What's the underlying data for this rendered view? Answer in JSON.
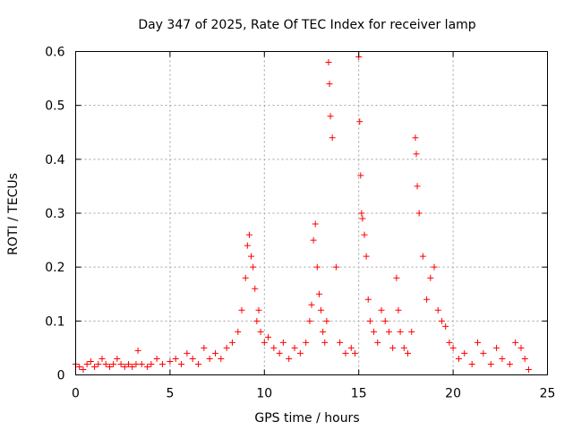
{
  "chart_data": {
    "type": "scatter",
    "title": "Day 347 of 2025, Rate Of TEC Index for receiver lamp",
    "xlabel": "GPS time / hours",
    "ylabel": "ROTI / TECUs",
    "xlim": [
      0,
      25
    ],
    "ylim": [
      0,
      0.6
    ],
    "xticks": [
      "0",
      "5",
      "10",
      "15",
      "20",
      "25"
    ],
    "yticks": [
      "0",
      "0.1",
      "0.2",
      "0.3",
      "0.4",
      "0.5",
      "0.6"
    ],
    "grid": true,
    "marker": "+",
    "color": "#ff0000",
    "series": [
      {
        "x": [
          0.0,
          0.2,
          0.4,
          0.6,
          0.8,
          1.0,
          1.2,
          1.4,
          1.6,
          1.8,
          2.0,
          2.2,
          2.4,
          2.6,
          2.8,
          3.0,
          3.2,
          3.3,
          3.5,
          3.8,
          4.0,
          4.3,
          4.6,
          5.0,
          5.3,
          5.6,
          5.9,
          6.2,
          6.5,
          6.8,
          7.1,
          7.4,
          7.7,
          8.0,
          8.3,
          8.6,
          8.8,
          9.0,
          9.1,
          9.2,
          9.3,
          9.4,
          9.5,
          9.6,
          9.7,
          9.8,
          10.0,
          10.2,
          10.5,
          10.8,
          11.0,
          11.3,
          11.6,
          11.9,
          12.2,
          12.4,
          12.5,
          12.6,
          12.7,
          12.8,
          12.9,
          13.0,
          13.1,
          13.2,
          13.3,
          13.4,
          13.45,
          13.5,
          13.6,
          13.8,
          14.0,
          14.3,
          14.6,
          14.8,
          15.0,
          15.05,
          15.1,
          15.15,
          15.2,
          15.3,
          15.4,
          15.5,
          15.6,
          15.8,
          16.0,
          16.2,
          16.4,
          16.6,
          16.8,
          17.0,
          17.1,
          17.2,
          17.4,
          17.6,
          17.8,
          18.0,
          18.05,
          18.1,
          18.2,
          18.4,
          18.6,
          18.8,
          19.0,
          19.2,
          19.4,
          19.6,
          19.8,
          20.0,
          20.3,
          20.6,
          21.0,
          21.3,
          21.6,
          22.0,
          22.3,
          22.6,
          23.0,
          23.3,
          23.6,
          23.8,
          24.0
        ],
        "y": [
          0.02,
          0.015,
          0.01,
          0.02,
          0.025,
          0.015,
          0.02,
          0.03,
          0.02,
          0.015,
          0.02,
          0.03,
          0.02,
          0.015,
          0.02,
          0.015,
          0.02,
          0.045,
          0.02,
          0.015,
          0.02,
          0.03,
          0.02,
          0.025,
          0.03,
          0.02,
          0.04,
          0.03,
          0.02,
          0.05,
          0.03,
          0.04,
          0.03,
          0.05,
          0.06,
          0.08,
          0.12,
          0.18,
          0.24,
          0.26,
          0.22,
          0.2,
          0.16,
          0.1,
          0.12,
          0.08,
          0.06,
          0.07,
          0.05,
          0.04,
          0.06,
          0.03,
          0.05,
          0.04,
          0.06,
          0.1,
          0.13,
          0.25,
          0.28,
          0.2,
          0.15,
          0.12,
          0.08,
          0.06,
          0.1,
          0.58,
          0.54,
          0.48,
          0.44,
          0.2,
          0.06,
          0.04,
          0.05,
          0.04,
          0.59,
          0.47,
          0.37,
          0.3,
          0.29,
          0.26,
          0.22,
          0.14,
          0.1,
          0.08,
          0.06,
          0.12,
          0.1,
          0.08,
          0.05,
          0.18,
          0.12,
          0.08,
          0.05,
          0.04,
          0.08,
          0.44,
          0.41,
          0.35,
          0.3,
          0.22,
          0.14,
          0.18,
          0.2,
          0.12,
          0.1,
          0.09,
          0.06,
          0.05,
          0.03,
          0.04,
          0.02,
          0.06,
          0.04,
          0.02,
          0.05,
          0.03,
          0.02,
          0.06,
          0.05,
          0.03,
          0.01
        ]
      }
    ]
  }
}
